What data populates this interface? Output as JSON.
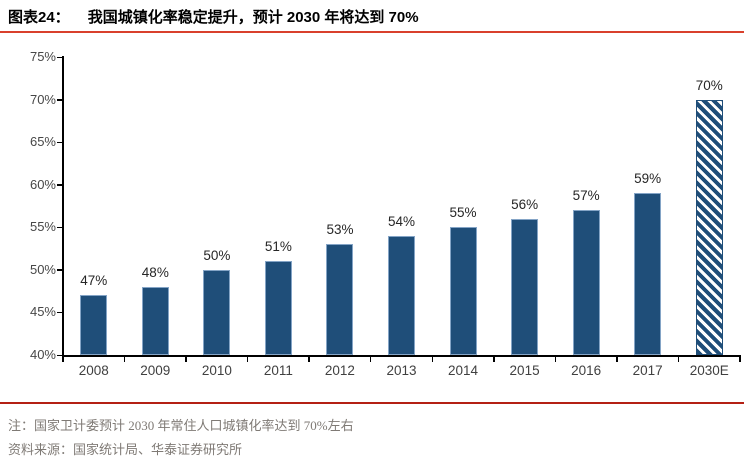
{
  "header": {
    "tag": "图表24：",
    "title": "我国城镇化率稳定提升，预计 2030 年将达到 70%"
  },
  "footer": {
    "note": "注：国家卫计委预计 2030 年常住人口城镇化率达到 70%左右",
    "source": "资料来源：国家统计局、华泰证券研究所"
  },
  "colors": {
    "bar_fill": "#1f4e79",
    "bar_border": "#84a4c6",
    "axis": "#000000",
    "title_rule": "#d9402c",
    "footer_rule": "#b42014",
    "data_label": "#262626",
    "tick_label": "#474747",
    "note_text": "#7f7a75"
  },
  "chart_data": {
    "type": "bar",
    "title": "我国城镇化率稳定提升，预计 2030 年将达到 70%",
    "categories": [
      "2008",
      "2009",
      "2010",
      "2011",
      "2012",
      "2013",
      "2014",
      "2015",
      "2016",
      "2017",
      "2030E"
    ],
    "values": [
      47,
      48,
      50,
      51,
      53,
      54,
      55,
      56,
      57,
      59,
      70
    ],
    "data_labels": [
      "47%",
      "48%",
      "50%",
      "51%",
      "53%",
      "54%",
      "55%",
      "56%",
      "57%",
      "59%",
      "70%"
    ],
    "hatched_categories": [
      "2030E"
    ],
    "xlabel": "",
    "ylabel": "",
    "ylim": [
      40,
      75
    ],
    "ytick_step": 5,
    "ytick_labels": [
      "40%",
      "45%",
      "50%",
      "55%",
      "60%",
      "65%",
      "70%",
      "75%"
    ],
    "grid": false,
    "legend": false,
    "unit": "percent"
  }
}
